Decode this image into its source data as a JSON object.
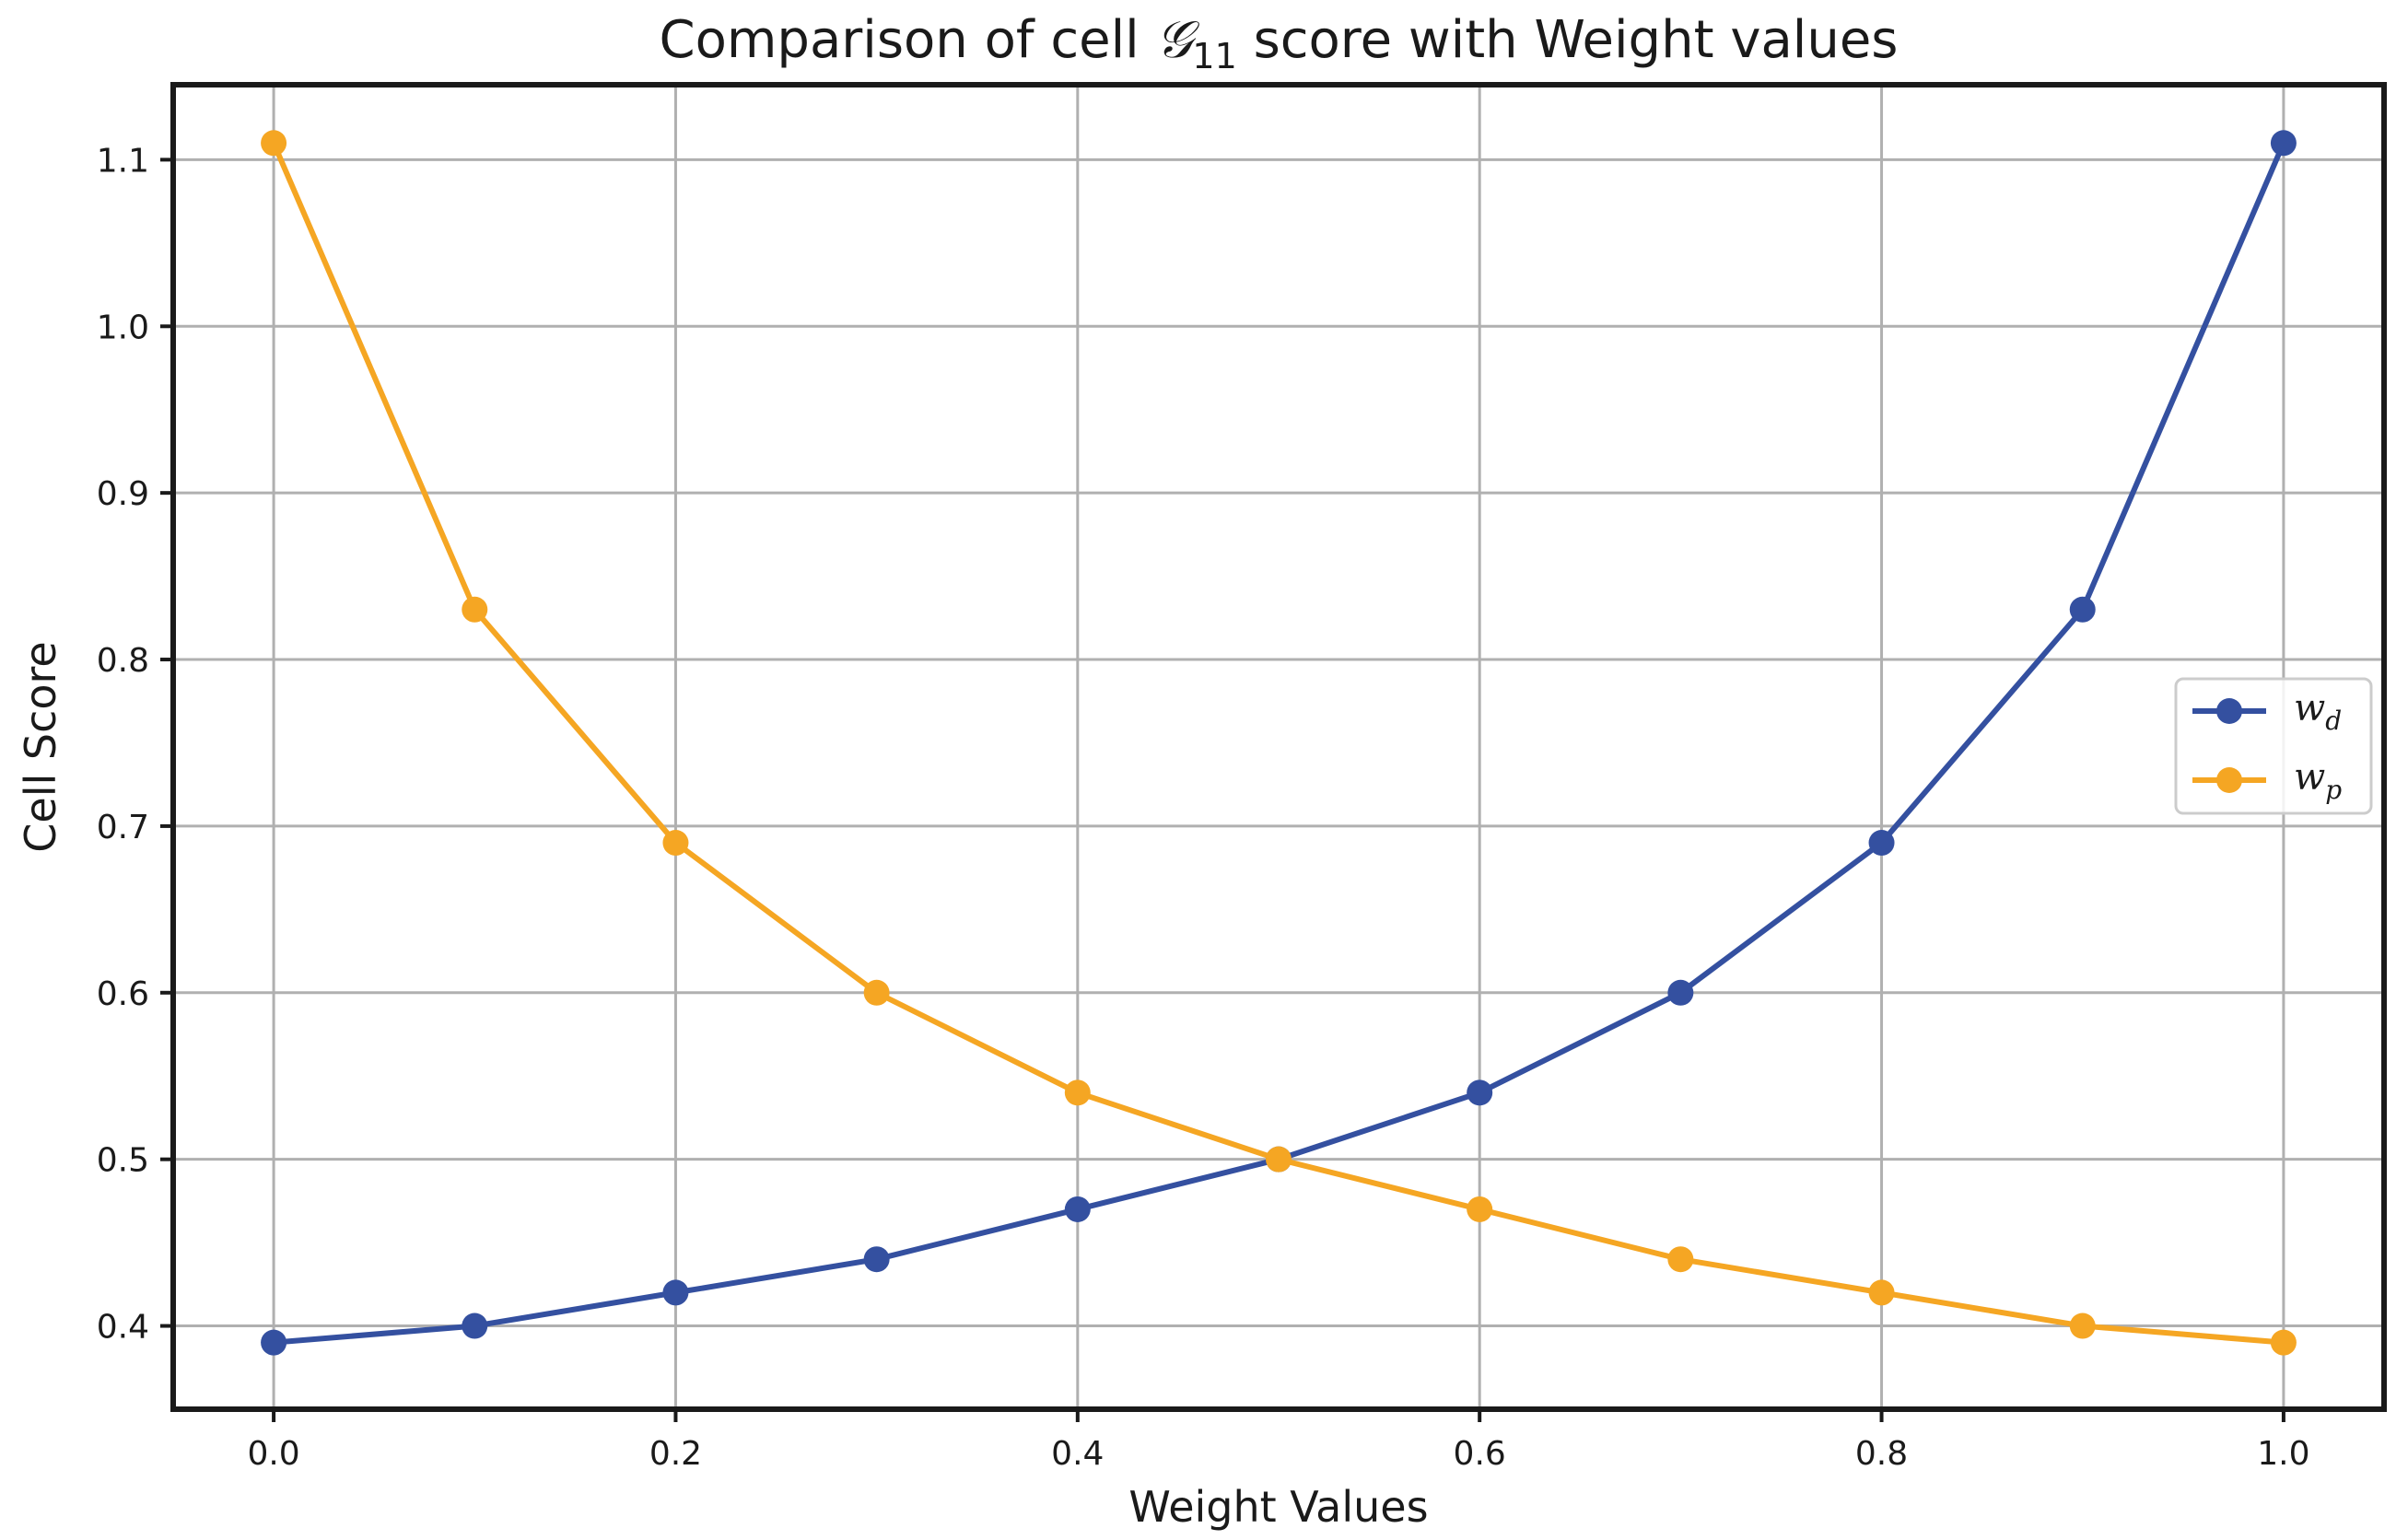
{
  "chart_data": {
    "type": "line",
    "title": "Comparison of cell ",
    "title_symbol": "𝒢",
    "title_subscript": "11",
    "title_suffix": " score with Weight values",
    "xlabel": "Weight Values",
    "ylabel": "Cell Score",
    "xlim": [
      -0.05,
      1.05
    ],
    "ylim": [
      0.35,
      1.145
    ],
    "grid": true,
    "legend_position": "center-right",
    "x": [
      0.0,
      0.1,
      0.2,
      0.3,
      0.4,
      0.5,
      0.6,
      0.7,
      0.8,
      0.9,
      1.0
    ],
    "x_ticks": [
      0.0,
      0.2,
      0.4,
      0.6,
      0.8,
      1.0
    ],
    "x_tick_labels": [
      "0.0",
      "0.2",
      "0.4",
      "0.6",
      "0.8",
      "1.0"
    ],
    "y_ticks": [
      0.4,
      0.5,
      0.6,
      0.7,
      0.8,
      0.9,
      1.0,
      1.1
    ],
    "y_tick_labels": [
      "0.4",
      "0.5",
      "0.6",
      "0.7",
      "0.8",
      "0.9",
      "1.0",
      "1.1"
    ],
    "series": [
      {
        "name": "w_d",
        "label_main": "w",
        "label_sub": "d",
        "color": "#3450a0",
        "values": [
          0.39,
          0.4,
          0.42,
          0.44,
          0.47,
          0.5,
          0.54,
          0.6,
          0.69,
          0.83,
          1.11
        ]
      },
      {
        "name": "w_p",
        "label_main": "w",
        "label_sub": "p",
        "color": "#f5a623",
        "values": [
          1.11,
          0.83,
          0.69,
          0.6,
          0.54,
          0.5,
          0.47,
          0.44,
          0.42,
          0.4,
          0.39
        ]
      }
    ]
  }
}
